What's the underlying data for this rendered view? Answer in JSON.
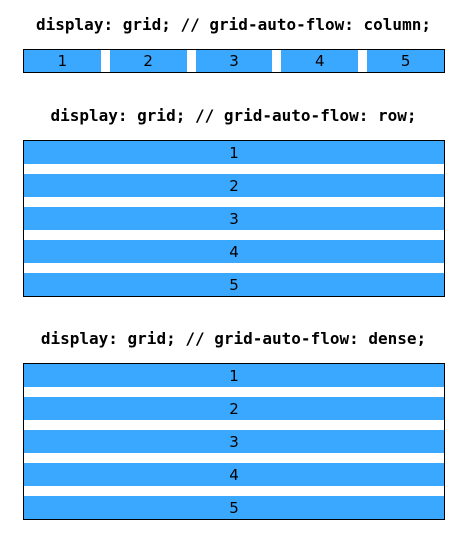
{
  "demos": [
    {
      "title": "display: grid; // grid-auto-flow: column;",
      "items": [
        "1",
        "2",
        "3",
        "4",
        "5"
      ]
    },
    {
      "title": "display: grid; // grid-auto-flow: row;",
      "items": [
        "1",
        "2",
        "3",
        "4",
        "5"
      ]
    },
    {
      "title": "display: grid; // grid-auto-flow: dense;",
      "items": [
        "1",
        "2",
        "3",
        "4",
        "5"
      ]
    }
  ],
  "colors": {
    "cell_background": "#3aa8ff",
    "border": "#000000",
    "background": "#ffffff"
  }
}
